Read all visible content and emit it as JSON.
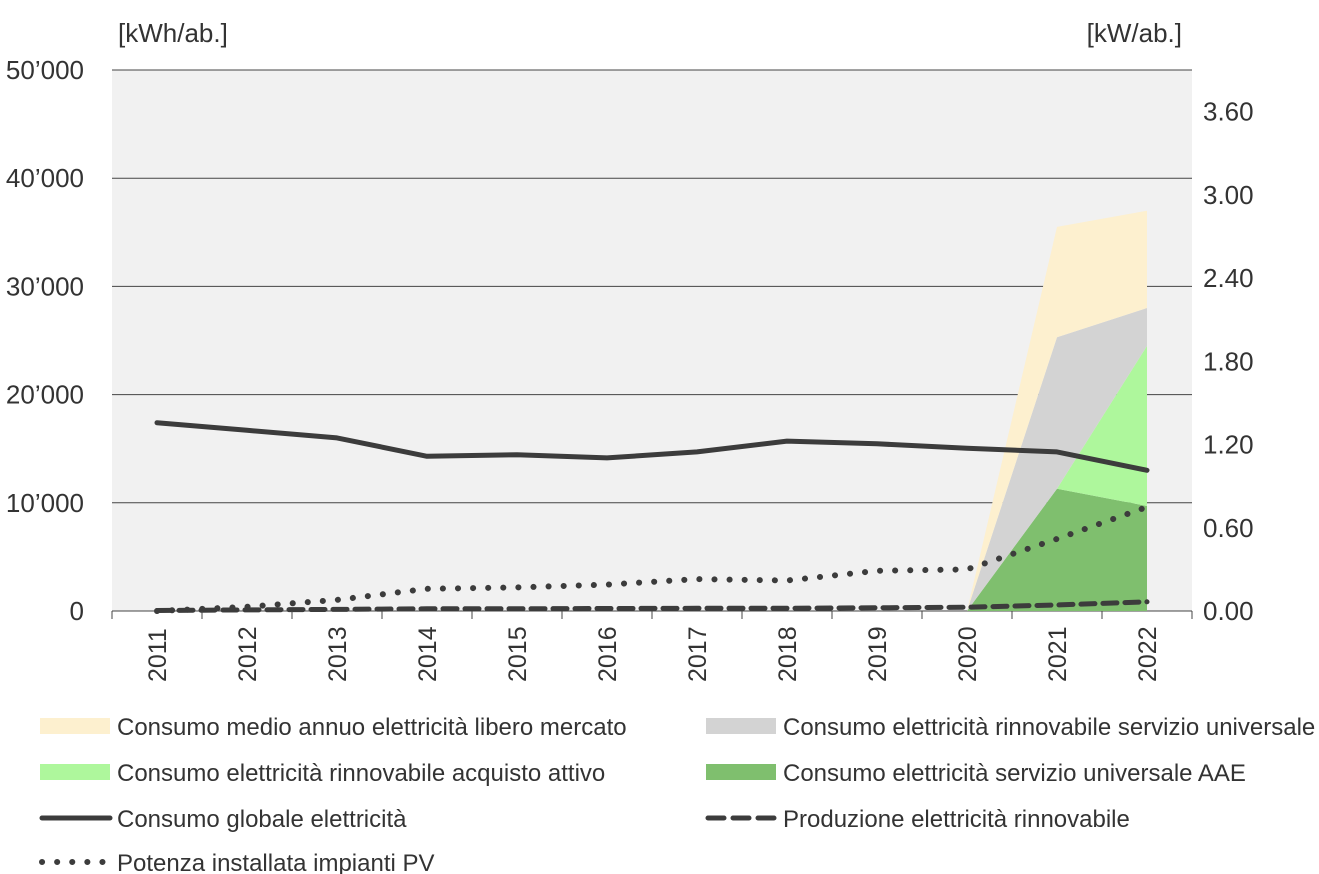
{
  "chart_data": {
    "type": "area",
    "title": "",
    "ylabel_left": "[kWh/ab.]",
    "ylabel_right": "[kW/ab.]",
    "x": [
      "2011",
      "2012",
      "2013",
      "2014",
      "2015",
      "2016",
      "2017",
      "2018",
      "2019",
      "2020",
      "2021",
      "2022"
    ],
    "ylim_left": [
      0,
      50000
    ],
    "ylim_right": [
      0,
      3.9
    ],
    "yticks_left": [
      "0",
      "10’000",
      "20’000",
      "30’000",
      "40’000",
      "50’000"
    ],
    "yticks_right": [
      "0.00",
      "0.60",
      "1.20",
      "1.80",
      "2.40",
      "3.00",
      "3.60"
    ],
    "grid": true,
    "colors": {
      "libero": "#fdf0cf",
      "rinnovabile_universale": "#d3d3d3",
      "acquisto_attivo": "#aef79c",
      "universale": "#7fbf6e",
      "line": "#3c3c3c",
      "plot_bg": "#f1f1f1"
    },
    "stacked_areas": [
      {
        "name": "Consumo elettricità servizio universale AAE",
        "color_key": "universale",
        "values": [
          0,
          0,
          0,
          0,
          0,
          0,
          0,
          0,
          0,
          0,
          11300,
          9700
        ]
      },
      {
        "name": "Consumo elettricità rinnovabile acquisto attivo",
        "color_key": "acquisto_attivo",
        "values": [
          0,
          0,
          0,
          0,
          0,
          0,
          0,
          0,
          0,
          0,
          0,
          14800
        ]
      },
      {
        "name": "Consumo elettricità rinnovabile servizio universale AAE",
        "color_key": "rinnovabile_universale",
        "values": [
          0,
          0,
          0,
          0,
          0,
          0,
          0,
          0,
          0,
          0,
          14000,
          3500
        ]
      },
      {
        "name": "Consumo medio annuo elettricità libero mercato",
        "color_key": "libero",
        "values": [
          0,
          0,
          0,
          0,
          0,
          0,
          0,
          0,
          0,
          0,
          10200,
          9000
        ]
      }
    ],
    "lines": [
      {
        "name": "Consumo globale elettricità",
        "axis": "left",
        "style": "solid",
        "values": [
          17400,
          16700,
          16000,
          14300,
          14450,
          14150,
          14700,
          15700,
          15450,
          15050,
          14700,
          13000
        ]
      },
      {
        "name": "Produzione elettricità rinnovabile",
        "axis": "left",
        "style": "dashed",
        "values": [
          50,
          100,
          150,
          200,
          200,
          230,
          250,
          250,
          300,
          350,
          550,
          850
        ]
      },
      {
        "name": "Potenza installata impianti PV",
        "axis": "right",
        "style": "dotted",
        "values": [
          0.0,
          0.03,
          0.08,
          0.16,
          0.17,
          0.19,
          0.23,
          0.22,
          0.29,
          0.3,
          0.52,
          0.75
        ]
      }
    ],
    "legend": {
      "placement": "bottom",
      "items": [
        {
          "label": "Consumo medio annuo elettricità libero mercato",
          "kind": "patch",
          "color_key": "libero"
        },
        {
          "label": "Consumo elettricità rinnovabile servizio universale AAE",
          "kind": "patch",
          "color_key": "rinnovabile_universale"
        },
        {
          "label": "Consumo elettricità rinnovabile acquisto attivo",
          "kind": "patch",
          "color_key": "acquisto_attivo"
        },
        {
          "label": "Consumo elettricità servizio universale AAE",
          "kind": "patch",
          "color_key": "universale"
        },
        {
          "label": "Consumo globale elettricità",
          "kind": "solid"
        },
        {
          "label": "Produzione elettricità rinnovabile",
          "kind": "dashed"
        },
        {
          "label": "Potenza installata impianti PV",
          "kind": "dotted"
        }
      ]
    }
  }
}
